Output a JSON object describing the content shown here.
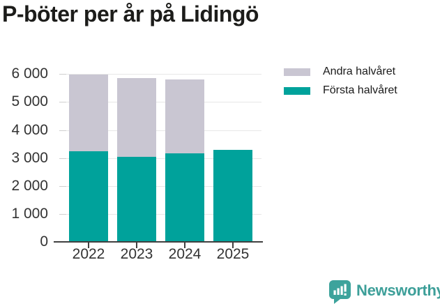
{
  "title": "P-böter per år på Lidingö",
  "chart_data": {
    "type": "bar",
    "stacked": true,
    "title": "P-böter per år på Lidingö",
    "categories": [
      "2022",
      "2023",
      "2024",
      "2025"
    ],
    "series": [
      {
        "name": "Första halvåret",
        "color": "#00a29b",
        "values": [
          3250,
          3050,
          3170,
          3300
        ]
      },
      {
        "name": "Andra halvåret",
        "color": "#c9c6d2",
        "values": [
          2730,
          2800,
          2650,
          0
        ]
      }
    ],
    "totals": [
      5980,
      5850,
      5820,
      3300
    ],
    "xlabel": "",
    "ylabel": "",
    "ylim": [
      0,
      6000
    ],
    "ytick_interval": 1000,
    "yticks": [
      {
        "value": 0,
        "label": "0"
      },
      {
        "value": 1000,
        "label": "1 000"
      },
      {
        "value": 2000,
        "label": "2 000"
      },
      {
        "value": 3000,
        "label": "3 000"
      },
      {
        "value": 4000,
        "label": "4 000"
      },
      {
        "value": 5000,
        "label": "5 000"
      },
      {
        "value": 6000,
        "label": "6 000"
      }
    ],
    "grid": true,
    "legend_position": "top-right"
  },
  "legend": {
    "items": [
      {
        "label": "Andra halvåret",
        "color": "#c9c6d2"
      },
      {
        "label": "Första halvåret",
        "color": "#00a29b"
      }
    ]
  },
  "footer": {
    "brand": "Newsworthy",
    "logo_icon": "newsworthy-logo-icon",
    "brand_color": "#3d9f99"
  },
  "colors": {
    "first_half": "#00a29b",
    "second_half": "#c9c6d2",
    "title_text": "#1c1c1a",
    "axis_text": "#333333",
    "gridline": "#e7e7e7",
    "axis_line": "#404040",
    "background": "#ffffff"
  }
}
